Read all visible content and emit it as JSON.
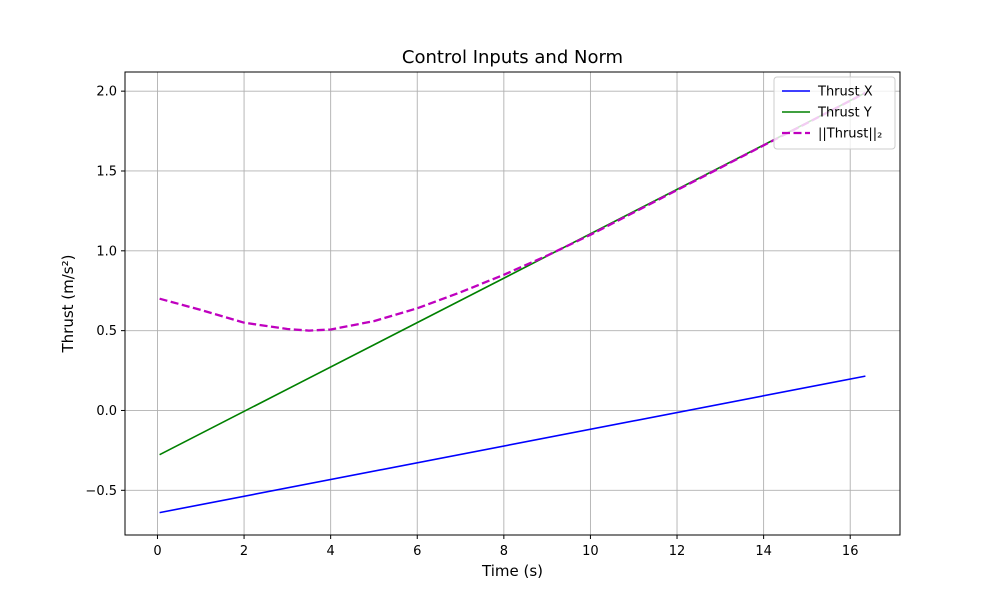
{
  "chart_data": {
    "type": "line",
    "title": "Control Inputs and Norm",
    "xlabel": "Time (s)",
    "ylabel": "Thrust (m/s²)",
    "xlim": [
      -0.75,
      17.15
    ],
    "ylim": [
      -0.78,
      2.12
    ],
    "xticks": [
      0,
      2,
      4,
      6,
      8,
      10,
      12,
      14,
      16
    ],
    "xtick_labels": [
      "0",
      "2",
      "4",
      "6",
      "8",
      "10",
      "12",
      "14",
      "16"
    ],
    "yticks": [
      -0.5,
      0.0,
      0.5,
      1.0,
      1.5,
      2.0
    ],
    "ytick_labels": [
      "−0.5",
      "0.0",
      "0.5",
      "1.0",
      "1.5",
      "2.0"
    ],
    "grid": true,
    "legend_position": "top-right",
    "colors": {
      "thrust_x": "#0000ff",
      "thrust_y": "#008000",
      "norm": "#bf00bf",
      "grid": "#b0b0b0"
    },
    "series": [
      {
        "name": "Thrust X",
        "style": "solid",
        "color": "#0000ff",
        "x": [
          0.05,
          16.35
        ],
        "y": [
          -0.64,
          0.215
        ]
      },
      {
        "name": "Thrust Y",
        "style": "solid",
        "color": "#008000",
        "x": [
          0.05,
          16.35
        ],
        "y": [
          -0.277,
          1.99
        ]
      },
      {
        "name": "||Thrust||₂",
        "style": "dashed",
        "color": "#bf00bf",
        "x": [
          0.05,
          1,
          2,
          3,
          3.5,
          4,
          5,
          6,
          7,
          8,
          9,
          10,
          11,
          12,
          13,
          14,
          15,
          16,
          16.35
        ],
        "y": [
          0.7,
          0.63,
          0.55,
          0.51,
          0.5,
          0.507,
          0.56,
          0.64,
          0.74,
          0.85,
          0.97,
          1.1,
          1.24,
          1.38,
          1.52,
          1.66,
          1.8,
          1.94,
          1.99
        ]
      }
    ]
  }
}
